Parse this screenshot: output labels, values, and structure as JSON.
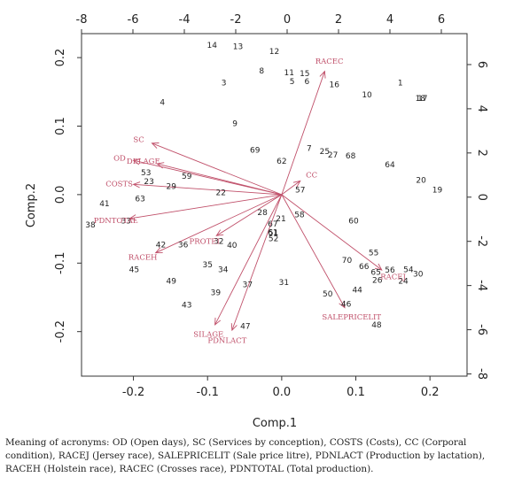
{
  "chart_data": {
    "type": "scatter",
    "subtype": "biplot",
    "xlabel": "Comp.1",
    "ylabel": "Comp.2",
    "xlim": [
      -0.27,
      0.25
    ],
    "ylim": [
      -0.265,
      0.235
    ],
    "xticks": [
      -0.2,
      -0.1,
      0.0,
      0.1,
      0.2
    ],
    "yticks": [
      -0.2,
      -0.1,
      0.0,
      0.1,
      0.2
    ],
    "xtick_labels": [
      "-0.2",
      "-0.1",
      "0.0",
      "0.1",
      "0.2"
    ],
    "ytick_labels": [
      "-0.2",
      "-0.1",
      "0.0",
      "0.1",
      "0.2"
    ],
    "top_axis": {
      "lim": [
        -8,
        7
      ],
      "ticks": [
        -8,
        -6,
        -4,
        -2,
        0,
        2,
        4,
        6
      ],
      "tick_labels": [
        "-8",
        "-6",
        "-4",
        "-2",
        "0",
        "2",
        "4",
        "6"
      ]
    },
    "right_axis": {
      "lim": [
        -8.1,
        7.4
      ],
      "ticks": [
        -8,
        -6,
        -4,
        -2,
        0,
        2,
        4,
        6
      ],
      "tick_labels": [
        "-8",
        "-6",
        "-4",
        "-2",
        "0",
        "2",
        "4",
        "6"
      ]
    },
    "arrow_color": "#c0506a",
    "observations": [
      {
        "label": "1",
        "x": 0.16,
        "y": 0.163
      },
      {
        "label": "3",
        "x": -0.078,
        "y": 0.163
      },
      {
        "label": "4",
        "x": -0.161,
        "y": 0.135
      },
      {
        "label": "5",
        "x": 0.014,
        "y": 0.165
      },
      {
        "label": "6",
        "x": 0.034,
        "y": 0.165
      },
      {
        "label": "7",
        "x": 0.037,
        "y": 0.068
      },
      {
        "label": "8",
        "x": -0.027,
        "y": 0.181
      },
      {
        "label": "9",
        "x": -0.063,
        "y": 0.104
      },
      {
        "label": "10",
        "x": 0.115,
        "y": 0.146
      },
      {
        "label": "11",
        "x": 0.01,
        "y": 0.178
      },
      {
        "label": "12",
        "x": -0.01,
        "y": 0.209
      },
      {
        "label": "13",
        "x": -0.059,
        "y": 0.216
      },
      {
        "label": "14",
        "x": -0.094,
        "y": 0.218
      },
      {
        "label": "15",
        "x": 0.031,
        "y": 0.177
      },
      {
        "label": "16",
        "x": 0.071,
        "y": 0.161
      },
      {
        "label": "17",
        "x": 0.19,
        "y": 0.141
      },
      {
        "label": "18",
        "x": 0.187,
        "y": 0.141
      },
      {
        "label": "19",
        "x": 0.21,
        "y": 0.007
      },
      {
        "label": "20",
        "x": 0.188,
        "y": 0.021
      },
      {
        "label": "21",
        "x": -0.001,
        "y": -0.035
      },
      {
        "label": "22",
        "x": -0.082,
        "y": 0.003
      },
      {
        "label": "23",
        "x": -0.179,
        "y": 0.019
      },
      {
        "label": "24",
        "x": 0.164,
        "y": -0.126
      },
      {
        "label": "25",
        "x": 0.058,
        "y": 0.063
      },
      {
        "label": "26",
        "x": 0.129,
        "y": -0.125
      },
      {
        "label": "27",
        "x": 0.069,
        "y": 0.058
      },
      {
        "label": "28",
        "x": -0.026,
        "y": -0.026
      },
      {
        "label": "29",
        "x": -0.149,
        "y": 0.012
      },
      {
        "label": "30",
        "x": 0.184,
        "y": -0.116
      },
      {
        "label": "31",
        "x": 0.003,
        "y": -0.128
      },
      {
        "label": "32",
        "x": -0.085,
        "y": -0.068
      },
      {
        "label": "33",
        "x": -0.21,
        "y": -0.038
      },
      {
        "label": "34",
        "x": -0.079,
        "y": -0.109
      },
      {
        "label": "35",
        "x": -0.1,
        "y": -0.102
      },
      {
        "label": "36",
        "x": -0.133,
        "y": -0.073
      },
      {
        "label": "37",
        "x": -0.046,
        "y": -0.131
      },
      {
        "label": "38",
        "x": -0.258,
        "y": -0.044
      },
      {
        "label": "39",
        "x": -0.089,
        "y": -0.143
      },
      {
        "label": "40",
        "x": -0.067,
        "y": -0.074
      },
      {
        "label": "41",
        "x": -0.239,
        "y": -0.013
      },
      {
        "label": "42",
        "x": -0.163,
        "y": -0.073
      },
      {
        "label": "43",
        "x": -0.128,
        "y": -0.161
      },
      {
        "label": "44",
        "x": 0.102,
        "y": -0.139
      },
      {
        "label": "45",
        "x": -0.199,
        "y": -0.109
      },
      {
        "label": "46",
        "x": 0.087,
        "y": -0.16
      },
      {
        "label": "47",
        "x": -0.049,
        "y": -0.192
      },
      {
        "label": "48",
        "x": 0.128,
        "y": -0.19
      },
      {
        "label": "49",
        "x": -0.149,
        "y": -0.126
      },
      {
        "label": "50",
        "x": 0.062,
        "y": -0.145
      },
      {
        "label": "51",
        "x": -0.011,
        "y": -0.056
      },
      {
        "label": "52",
        "x": -0.011,
        "y": -0.064
      },
      {
        "label": "53",
        "x": -0.183,
        "y": 0.032
      },
      {
        "label": "54",
        "x": 0.171,
        "y": -0.109
      },
      {
        "label": "55",
        "x": 0.124,
        "y": -0.085
      },
      {
        "label": "56",
        "x": 0.146,
        "y": -0.11
      },
      {
        "label": "57",
        "x": 0.025,
        "y": 0.007
      },
      {
        "label": "58",
        "x": 0.024,
        "y": -0.029
      },
      {
        "label": "59",
        "x": -0.128,
        "y": 0.027
      },
      {
        "label": "60",
        "x": 0.097,
        "y": -0.038
      },
      {
        "label": "61",
        "x": -0.012,
        "y": -0.055
      },
      {
        "label": "62",
        "x": 0.0,
        "y": 0.049
      },
      {
        "label": "63",
        "x": -0.191,
        "y": -0.006
      },
      {
        "label": "64",
        "x": 0.146,
        "y": 0.044
      },
      {
        "label": "65",
        "x": 0.127,
        "y": -0.113
      },
      {
        "label": "66",
        "x": 0.111,
        "y": -0.105
      },
      {
        "label": "67",
        "x": -0.012,
        "y": -0.043
      },
      {
        "label": "68",
        "x": 0.093,
        "y": 0.057
      },
      {
        "label": "69",
        "x": -0.036,
        "y": 0.065
      },
      {
        "label": "70",
        "x": 0.088,
        "y": -0.096
      }
    ],
    "variables": [
      {
        "label": "OD",
        "x": -0.2,
        "y": 0.05
      },
      {
        "label": "SC",
        "x": -0.175,
        "y": 0.075
      },
      {
        "label": "COSTS",
        "x": -0.2,
        "y": 0.015
      },
      {
        "label": "CC",
        "x": 0.025,
        "y": 0.02
      },
      {
        "label": "RACEJ",
        "x": 0.135,
        "y": -0.11
      },
      {
        "label": "SALEPRICELIT",
        "x": 0.085,
        "y": -0.165
      },
      {
        "label": "PDNLACT",
        "x": -0.067,
        "y": -0.198
      },
      {
        "label": "RACEH",
        "x": -0.17,
        "y": -0.085
      },
      {
        "label": "RACEC",
        "x": 0.058,
        "y": 0.18
      },
      {
        "label": "PDNTOTAL",
        "x": -0.205,
        "y": -0.035
      },
      {
        "label": "DELAGE",
        "x": -0.168,
        "y": 0.045
      },
      {
        "label": "PROTEI",
        "x": -0.088,
        "y": -0.06
      },
      {
        "label": "SILAGE",
        "x": -0.09,
        "y": -0.19
      }
    ]
  },
  "caption": "Meaning of acronyms: OD (Open days), SC (Services by conception), COSTS (Costs), CC (Corporal condition), RACEJ (Jersey race), SALEPRICELIT (Sale price litre), PDNLACT (Production by lactation), RACEH (Holstein race), RACEC (Crosses race), PDNTOTAL (Total production)."
}
